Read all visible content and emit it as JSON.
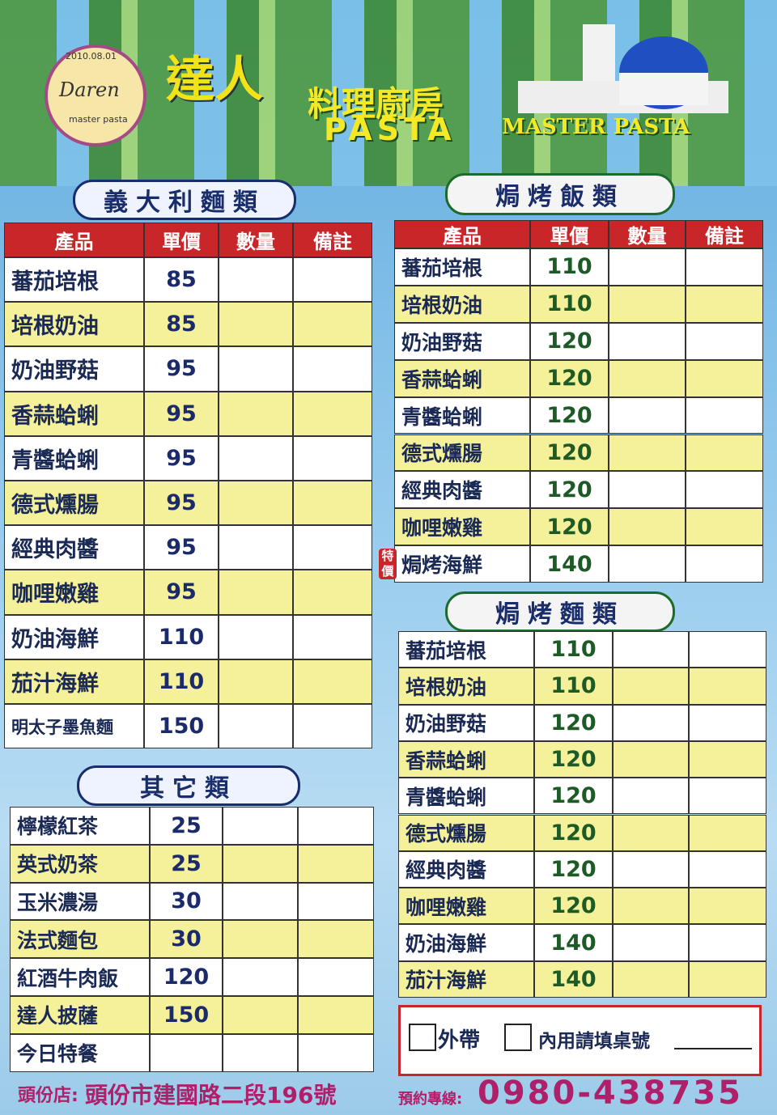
{
  "logo": {
    "date": "2010.08.01",
    "name": "Daren",
    "tagline": "master pasta"
  },
  "header": {
    "brand": "達人",
    "title": "料理廚房",
    "pasta": "PASTA",
    "english": "MASTER PASTA"
  },
  "pasta": {
    "title": "義大利麵類",
    "headers": [
      "產品",
      "單價",
      "數量",
      "備註"
    ],
    "rows": [
      [
        "蕃茄培根",
        85
      ],
      [
        "培根奶油",
        85
      ],
      [
        "奶油野菇",
        95
      ],
      [
        "香蒜蛤蜊",
        95
      ],
      [
        "青醬蛤蜊",
        95
      ],
      [
        "德式燻腸",
        95
      ],
      [
        "經典肉醬",
        95
      ],
      [
        "咖哩嫩雞",
        95
      ],
      [
        "奶油海鮮",
        110
      ],
      [
        "茄汁海鮮",
        110
      ],
      [
        "明太子墨魚麵",
        150
      ]
    ]
  },
  "other": {
    "title": "其它類",
    "rows": [
      [
        "檸檬紅茶",
        25
      ],
      [
        "英式奶茶",
        25
      ],
      [
        "玉米濃湯",
        30
      ],
      [
        "法式麵包",
        30
      ],
      [
        "紅酒牛肉飯",
        120
      ],
      [
        "達人披薩",
        150
      ],
      [
        "今日特餐"
      ]
    ]
  },
  "baked_rice": {
    "title": "焗烤飯類",
    "headers": [
      "產品",
      "單價",
      "數量",
      "備註"
    ],
    "rows": [
      [
        "蕃茄培根",
        110
      ],
      [
        "培根奶油",
        110
      ],
      [
        "奶油野菇",
        120
      ],
      [
        "香蒜蛤蜊",
        120
      ],
      [
        "青醬蛤蜊",
        120
      ],
      [
        "德式燻腸",
        120
      ],
      [
        "經典肉醬",
        120
      ],
      [
        "咖哩嫩雞",
        120
      ],
      [
        "焗烤海鮮",
        140
      ]
    ],
    "special_badge": "特價"
  },
  "baked_noodle": {
    "title": "焗烤麵類",
    "rows": [
      [
        "蕃茄培根",
        110
      ],
      [
        "培根奶油",
        110
      ],
      [
        "奶油野菇",
        120
      ],
      [
        "香蒜蛤蜊",
        120
      ],
      [
        "青醬蛤蜊",
        120
      ],
      [
        "德式燻腸",
        120
      ],
      [
        "經典肉醬",
        120
      ],
      [
        "咖哩嫩雞",
        120
      ],
      [
        "奶油海鮮",
        140
      ],
      [
        "茄汁海鮮",
        140
      ]
    ]
  },
  "order": {
    "takeout": "外帶",
    "dine_in": "內用請填桌號"
  },
  "footer": {
    "store_label": "頭份店:",
    "address": "頭份市建國路二段196號",
    "phone_label": "預約專線:",
    "phone": "0980-438735"
  }
}
